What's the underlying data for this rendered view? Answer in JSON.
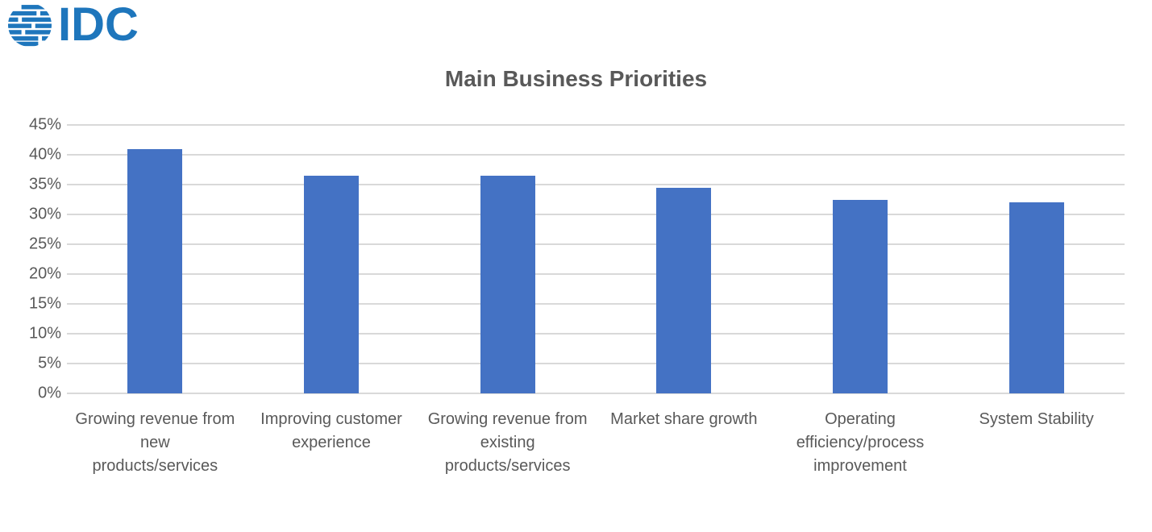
{
  "logo": {
    "text": "IDC",
    "icon": "globe-stripes-icon",
    "color": "#1E76BC"
  },
  "colors": {
    "bar": "#4472C4",
    "title_text": "#595959",
    "axis_text": "#595959",
    "gridline": "#D9D9D9",
    "background": "#FFFFFF"
  },
  "chart_data": {
    "type": "bar",
    "title": "Main Business Priorities",
    "categories": [
      "Growing revenue from new products/services",
      "Improving customer experience",
      "Growing revenue from existing products/services",
      "Market share growth",
      "Operating efficiency/process improvement",
      "System Stability"
    ],
    "category_lines": [
      [
        "Growing revenue from",
        "new",
        "products/services"
      ],
      [
        "Improving customer",
        "experience"
      ],
      [
        "Growing revenue from",
        "existing",
        "products/services"
      ],
      [
        "Market share growth"
      ],
      [
        "Operating",
        "efficiency/process",
        "improvement"
      ],
      [
        "System Stability"
      ]
    ],
    "values": [
      41,
      36.5,
      36.5,
      34.5,
      32.5,
      32
    ],
    "unit": "%",
    "xlabel": "",
    "ylabel": "",
    "ylim": [
      0,
      45
    ],
    "ytick_step": 5,
    "ytick_labels": [
      "0%",
      "5%",
      "10%",
      "15%",
      "20%",
      "25%",
      "30%",
      "35%",
      "40%",
      "45%"
    ],
    "grid": true,
    "legend": "none",
    "bar_color": "#4472C4"
  }
}
